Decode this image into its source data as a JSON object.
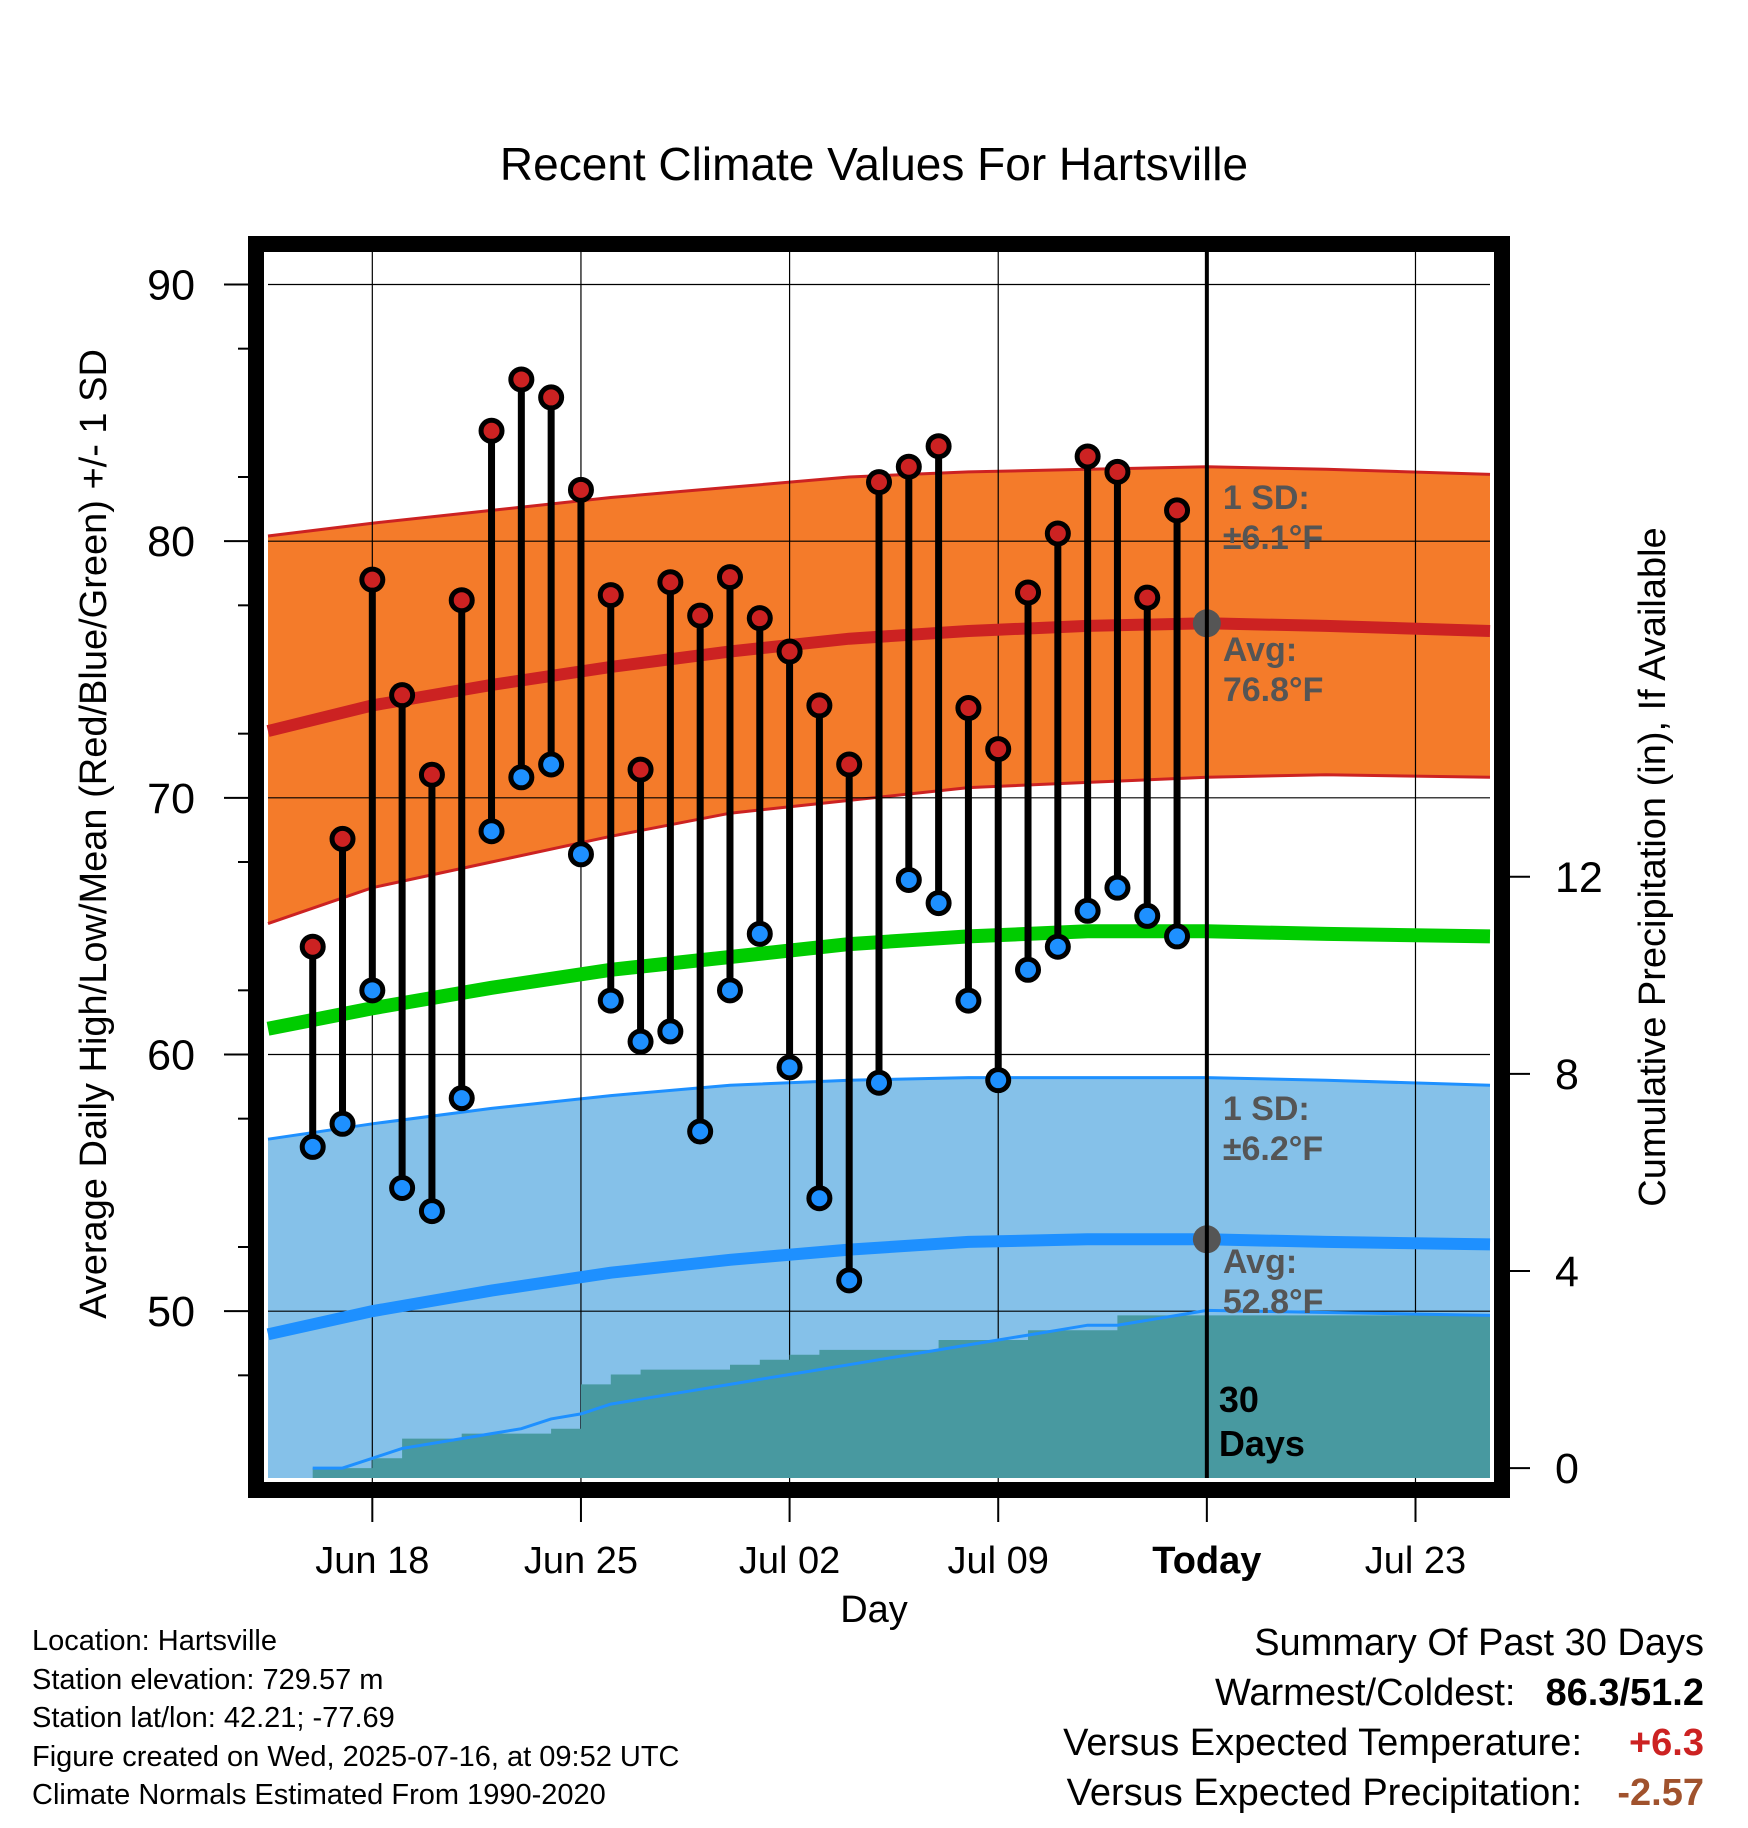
{
  "chart_data": {
    "type": "line",
    "title": "Recent Climate Values For Hartsville",
    "xlabel": "Day",
    "ylabel": "Average Daily High/Low/Mean (Red/Blue/Green) +/- 1 SD",
    "ylabel_right": "Cumulative Precipitation (in), If Available",
    "x_tick_labels": [
      "Jun 18",
      "Jun 25",
      "Jul 02",
      "Jul 09",
      "Today",
      "Jul 23"
    ],
    "y_ticks": [
      "90",
      "80",
      "70",
      "60",
      "50"
    ],
    "y2_ticks": [
      "12",
      "8",
      "4",
      "0"
    ],
    "ylim": [
      43.5,
      91.5
    ],
    "y2lim": [
      -0.2,
      24.8
    ],
    "xlim": [
      "2025-06-14T12:00",
      "2025-07-25T12:00"
    ],
    "today": "2025-07-16",
    "grid": true,
    "colors": {
      "high": "#cc2222",
      "low": "#1e90ff",
      "mean": "#00cc00",
      "high_band": "#f47b2a",
      "low_band": "#85c1e9",
      "precip": "#4899a0",
      "today_marker": "#555555"
    },
    "observed": {
      "dates": [
        "2025-06-16",
        "2025-06-17",
        "2025-06-18",
        "2025-06-19",
        "2025-06-20",
        "2025-06-21",
        "2025-06-22",
        "2025-06-23",
        "2025-06-24",
        "2025-06-25",
        "2025-06-26",
        "2025-06-27",
        "2025-06-28",
        "2025-06-29",
        "2025-06-30",
        "2025-07-01",
        "2025-07-02",
        "2025-07-03",
        "2025-07-04",
        "2025-07-05",
        "2025-07-06",
        "2025-07-07",
        "2025-07-08",
        "2025-07-09",
        "2025-07-10",
        "2025-07-11",
        "2025-07-12",
        "2025-07-13",
        "2025-07-14",
        "2025-07-15"
      ],
      "high": [
        64.2,
        68.4,
        78.5,
        74.0,
        70.9,
        77.7,
        84.3,
        86.3,
        85.6,
        82.0,
        77.9,
        71.1,
        78.4,
        77.1,
        78.6,
        77.0,
        75.7,
        73.6,
        71.3,
        82.3,
        82.9,
        83.7,
        73.5,
        71.9,
        78.0,
        80.3,
        83.3,
        82.7,
        77.8,
        81.2
      ],
      "low": [
        56.4,
        57.3,
        62.5,
        54.8,
        53.9,
        58.3,
        68.7,
        70.8,
        71.3,
        67.8,
        62.1,
        60.5,
        60.9,
        57.0,
        62.5,
        64.7,
        59.5,
        54.4,
        51.2,
        58.9,
        66.8,
        65.9,
        62.1,
        59.0,
        63.3,
        64.2,
        65.6,
        66.5,
        65.4,
        64.6
      ]
    },
    "normals": {
      "dates": [
        "2025-06-14T12:00",
        "2025-06-18",
        "2025-06-22",
        "2025-06-26",
        "2025-06-30",
        "2025-07-04",
        "2025-07-08",
        "2025-07-12",
        "2025-07-16",
        "2025-07-20",
        "2025-07-25T12:00"
      ],
      "high_avg": [
        72.6,
        73.6,
        74.4,
        75.1,
        75.7,
        76.2,
        76.5,
        76.7,
        76.8,
        76.7,
        76.5
      ],
      "high_plus_sd": [
        80.2,
        80.7,
        81.2,
        81.7,
        82.1,
        82.5,
        82.7,
        82.8,
        82.9,
        82.8,
        82.6
      ],
      "high_minus_sd": [
        65.1,
        66.5,
        67.5,
        68.5,
        69.4,
        69.9,
        70.4,
        70.6,
        70.8,
        70.9,
        70.8
      ],
      "mean": [
        61.0,
        61.8,
        62.6,
        63.3,
        63.8,
        64.3,
        64.6,
        64.8,
        64.8,
        64.7,
        64.6
      ],
      "low_avg": [
        49.1,
        50.0,
        50.8,
        51.5,
        52.0,
        52.4,
        52.7,
        52.8,
        52.8,
        52.7,
        52.6
      ],
      "low_plus_sd": [
        56.7,
        57.3,
        57.9,
        58.4,
        58.8,
        59.0,
        59.1,
        59.1,
        59.1,
        59.0,
        58.8
      ]
    },
    "precip": {
      "dates": [
        "2025-06-16",
        "2025-06-17",
        "2025-06-18",
        "2025-06-19",
        "2025-06-20",
        "2025-06-21",
        "2025-06-22",
        "2025-06-23",
        "2025-06-24",
        "2025-06-25",
        "2025-06-26",
        "2025-06-27",
        "2025-06-28",
        "2025-06-29",
        "2025-06-30",
        "2025-07-01",
        "2025-07-02",
        "2025-07-03",
        "2025-07-04",
        "2025-07-05",
        "2025-07-06",
        "2025-07-07",
        "2025-07-08",
        "2025-07-09",
        "2025-07-10",
        "2025-07-11",
        "2025-07-12",
        "2025-07-13",
        "2025-07-14",
        "2025-07-15",
        "2025-07-16",
        "2025-07-25T12:00"
      ],
      "cumulative": [
        0.0,
        0.0,
        0.2,
        0.6,
        0.6,
        0.7,
        0.7,
        0.7,
        0.8,
        1.7,
        1.9,
        2.0,
        2.0,
        2.0,
        2.1,
        2.2,
        2.3,
        2.4,
        2.4,
        2.4,
        2.4,
        2.6,
        2.6,
        2.6,
        2.8,
        2.8,
        2.8,
        3.1,
        3.1,
        3.1,
        3.1,
        3.1
      ],
      "normal_cumulative": [
        0.0,
        0.0,
        0.2,
        0.4,
        0.5,
        0.6,
        0.7,
        0.8,
        1.0,
        1.1,
        1.3,
        1.4,
        1.5,
        1.6,
        1.7,
        1.8,
        1.9,
        2.0,
        2.1,
        2.2,
        2.3,
        2.4,
        2.5,
        2.6,
        2.7,
        2.8,
        2.9,
        2.9,
        3.0,
        3.1,
        3.2,
        3.1
      ],
      "annotation": "30\nDays"
    },
    "annotations": {
      "high_sd": [
        "1 SD:",
        "±6.1°F"
      ],
      "high_avg": [
        "Avg:",
        "76.8°F"
      ],
      "low_sd": [
        "1 SD:",
        "±6.2°F"
      ],
      "low_avg": [
        "Avg:",
        "52.8°F"
      ]
    }
  },
  "meta": {
    "location": "Location: Hartsville",
    "elevation": "Station elevation: 729.57 m",
    "latlon": "Station lat/lon: 42.21; -77.69",
    "created": "Figure created on Wed, 2025-07-16, at 09:52 UTC",
    "normals": "Climate Normals Estimated From 1990-2020"
  },
  "summary": {
    "title": "Summary Of Past 30 Days",
    "warm_cold_label": "Warmest/Coldest:",
    "warmest": "86.3",
    "slash": "/",
    "coldest": "51.2",
    "temp_label": "Versus Expected Temperature:",
    "temp_value": "+6.3",
    "temp_color": "#cc2222",
    "precip_label": "Versus Expected Precipitation:",
    "precip_value": "-2.57",
    "precip_color": "#a0522d"
  }
}
